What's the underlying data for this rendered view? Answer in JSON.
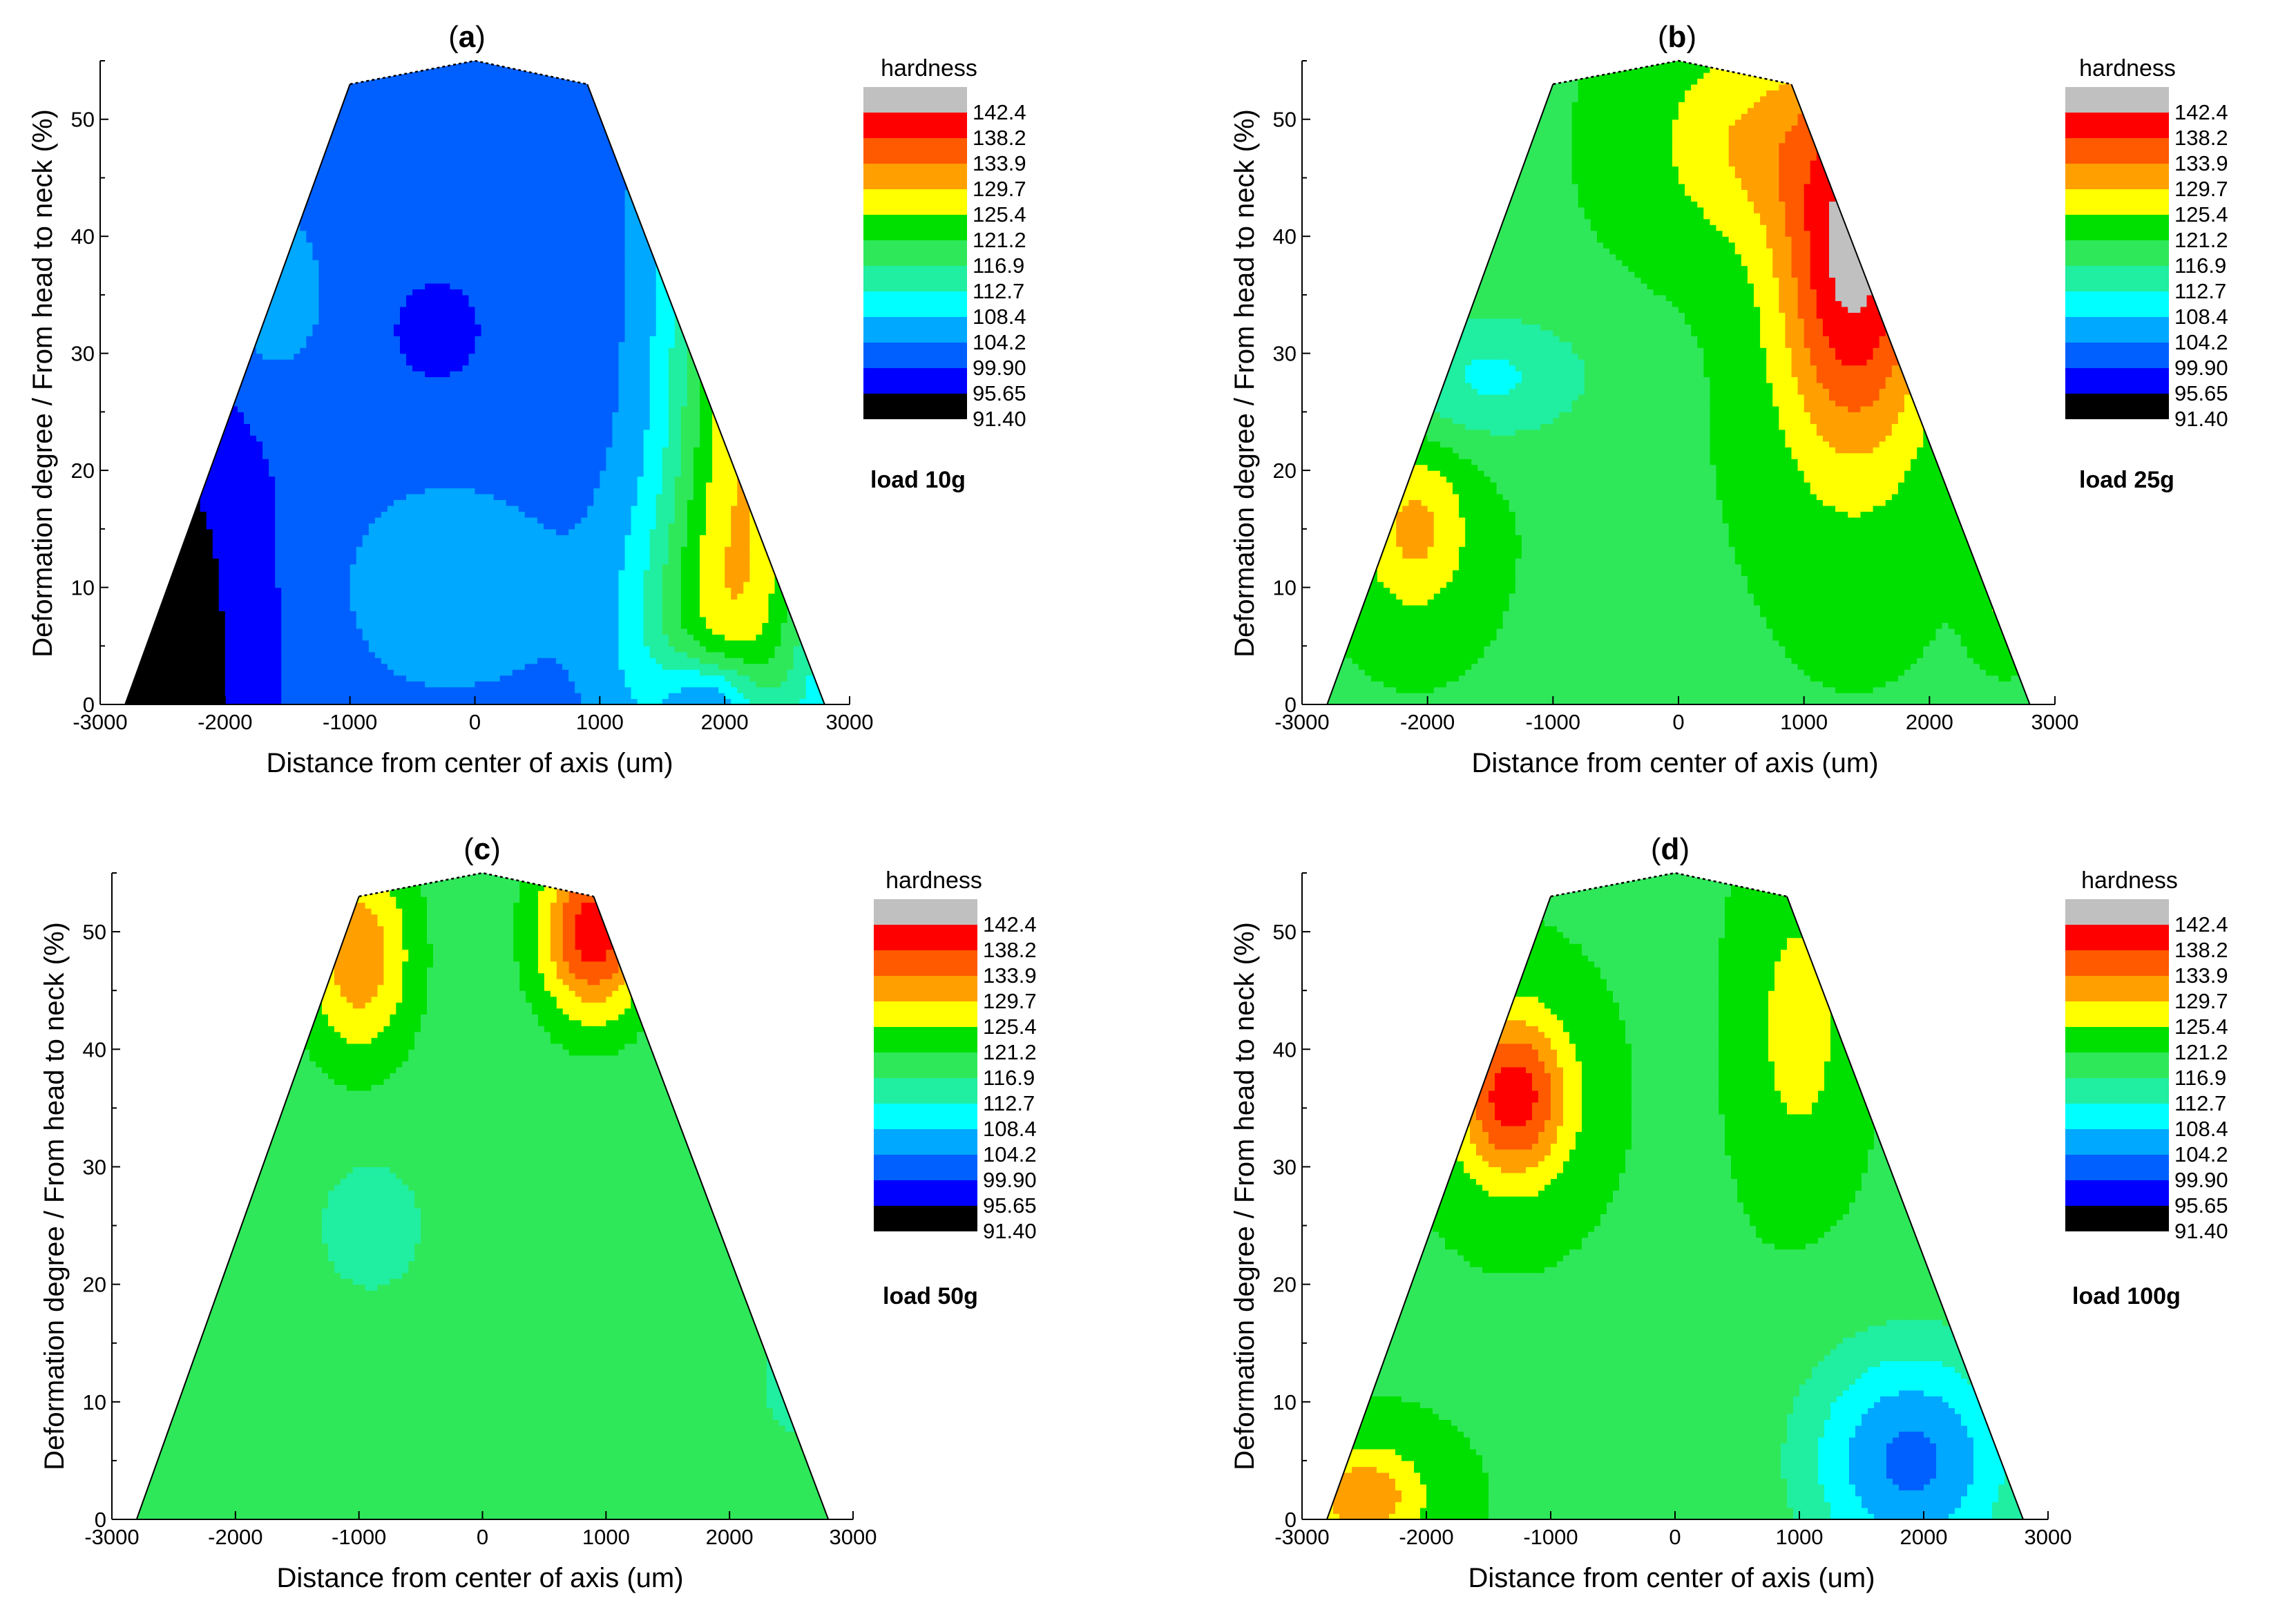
{
  "figure": {
    "panels": [
      "a",
      "b",
      "c",
      "d"
    ]
  },
  "chart_data": [
    {
      "type": "heatmap",
      "panel_label": "a",
      "title_open": "(",
      "title_close": ")",
      "xlabel": "Distance from center of axis (um)",
      "ylabel": "Deformation degree / From head to neck (%)",
      "xlim": [
        -3000,
        3000
      ],
      "ylim": [
        0,
        55
      ],
      "x_ticks": [
        -3000,
        -2000,
        -1000,
        0,
        1000,
        2000,
        3000
      ],
      "y_ticks": [
        0,
        10,
        20,
        30,
        40,
        50
      ],
      "legend_title": "hardness",
      "legend_levels": [
        "142.4",
        "138.2",
        "133.9",
        "129.7",
        "125.4",
        "121.2",
        "116.9",
        "112.7",
        "108.4",
        "104.2",
        "99.90",
        "95.65",
        "91.40"
      ],
      "load_label": "load 10g",
      "outline": {
        "bottom_half_width": 2800,
        "top_left_x": -1000,
        "top_right_x": 900,
        "top_y": 53,
        "peak_y": 55
      },
      "field": {
        "base": 102,
        "bumps": [
          {
            "x": 2200,
            "y": 30,
            "sx": 450,
            "sy": 25,
            "a": 27
          },
          {
            "x": 1800,
            "y": 5,
            "sx": 500,
            "sy": 10,
            "a": 12
          },
          {
            "x": 1900,
            "y": 0,
            "sx": 280,
            "sy": 3,
            "a": -18
          },
          {
            "x": -1700,
            "y": 35,
            "sx": 350,
            "sy": 6,
            "a": 6
          },
          {
            "x": -200,
            "y": 10,
            "sx": 600,
            "sy": 6,
            "a": 6
          },
          {
            "x": -2400,
            "y": 5,
            "sx": 550,
            "sy": 22,
            "a": -8
          },
          {
            "x": -2700,
            "y": 0,
            "sx": 300,
            "sy": 5,
            "a": -6
          },
          {
            "x": -300,
            "y": 32,
            "sx": 250,
            "sy": 3,
            "a": -5
          }
        ]
      }
    },
    {
      "type": "heatmap",
      "panel_label": "b",
      "title_open": "(",
      "title_close": ")",
      "xlabel": "Distance from center of axis (um)",
      "ylabel": "Deformation degree / From head to neck (%)",
      "xlim": [
        -3000,
        3000
      ],
      "ylim": [
        0,
        55
      ],
      "x_ticks": [
        -3000,
        -2000,
        -1000,
        0,
        1000,
        2000,
        3000
      ],
      "y_ticks": [
        0,
        10,
        20,
        30,
        40,
        50
      ],
      "legend_title": "hardness",
      "legend_levels": [
        "142.4",
        "138.2",
        "133.9",
        "129.7",
        "125.4",
        "121.2",
        "116.9",
        "112.7",
        "108.4",
        "104.2",
        "99.90",
        "95.65",
        "91.40"
      ],
      "load_label": "load 25g",
      "outline": {
        "bottom_half_width": 2800,
        "top_left_x": -1000,
        "top_right_x": 900,
        "top_y": 53,
        "peak_y": 55
      },
      "field": {
        "base": 121,
        "bumps": [
          {
            "x": 1400,
            "y": 38,
            "sx": 420,
            "sy": 12,
            "a": 23
          },
          {
            "x": 500,
            "y": 48,
            "sx": 500,
            "sy": 6,
            "a": 8
          },
          {
            "x": -1500,
            "y": 28,
            "sx": 600,
            "sy": 4,
            "a": -9
          },
          {
            "x": -2100,
            "y": 15,
            "sx": 300,
            "sy": 5,
            "a": 10
          },
          {
            "x": 2600,
            "y": 10,
            "sx": 150,
            "sy": 3,
            "a": 6
          }
        ]
      }
    },
    {
      "type": "heatmap",
      "panel_label": "c",
      "title_open": "(",
      "title_close": ")",
      "xlabel": "Distance from center of axis (um)",
      "ylabel": "Deformation degree / From head to neck (%)",
      "xlim": [
        -3000,
        3000
      ],
      "ylim": [
        0,
        55
      ],
      "x_ticks": [
        -3000,
        -2000,
        -1000,
        0,
        1000,
        2000,
        3000
      ],
      "y_ticks": [
        0,
        10,
        20,
        30,
        40,
        50
      ],
      "legend_title": "hardness",
      "legend_levels": [
        "142.4",
        "138.2",
        "133.9",
        "129.7",
        "125.4",
        "121.2",
        "116.9",
        "112.7",
        "108.4",
        "104.2",
        "99.90",
        "95.65",
        "91.40"
      ],
      "load_label": "load 50g",
      "outline": {
        "bottom_half_width": 2800,
        "top_left_x": -1000,
        "top_right_x": 900,
        "top_y": 53,
        "peak_y": 55
      },
      "field": {
        "base": 119,
        "bumps": [
          {
            "x": 900,
            "y": 50,
            "sx": 300,
            "sy": 5,
            "a": 22
          },
          {
            "x": -1000,
            "y": 48,
            "sx": 300,
            "sy": 6,
            "a": 14
          },
          {
            "x": -900,
            "y": 25,
            "sx": 300,
            "sy": 4,
            "a": -5
          },
          {
            "x": 2500,
            "y": 12,
            "sx": 150,
            "sy": 3,
            "a": -6
          }
        ]
      }
    },
    {
      "type": "heatmap",
      "panel_label": "d",
      "title_open": "(",
      "title_close": ")",
      "xlabel": "Distance from center of axis (um)",
      "ylabel": "Deformation degree / From head to neck (%)",
      "xlim": [
        -3000,
        3000
      ],
      "ylim": [
        0,
        55
      ],
      "x_ticks": [
        -3000,
        -2000,
        -1000,
        0,
        1000,
        2000,
        3000
      ],
      "y_ticks": [
        0,
        10,
        20,
        30,
        40,
        50
      ],
      "legend_title": "hardness",
      "legend_levels": [
        "142.4",
        "138.2",
        "133.9",
        "129.7",
        "125.4",
        "121.2",
        "116.9",
        "112.7",
        "108.4",
        "104.2",
        "99.90",
        "95.65",
        "91.40"
      ],
      "load_label": "load 100g",
      "outline": {
        "bottom_half_width": 2800,
        "top_left_x": -1000,
        "top_right_x": 900,
        "top_y": 53,
        "peak_y": 55
      },
      "field": {
        "base": 121,
        "bumps": [
          {
            "x": -1300,
            "y": 36,
            "sx": 320,
            "sy": 5,
            "a": 20
          },
          {
            "x": -2500,
            "y": 2,
            "sx": 350,
            "sy": 3,
            "a": 12
          },
          {
            "x": 1000,
            "y": 42,
            "sx": 250,
            "sy": 8,
            "a": 7
          },
          {
            "x": 1900,
            "y": 5,
            "sx": 600,
            "sy": 7,
            "a": -18
          }
        ]
      }
    }
  ]
}
